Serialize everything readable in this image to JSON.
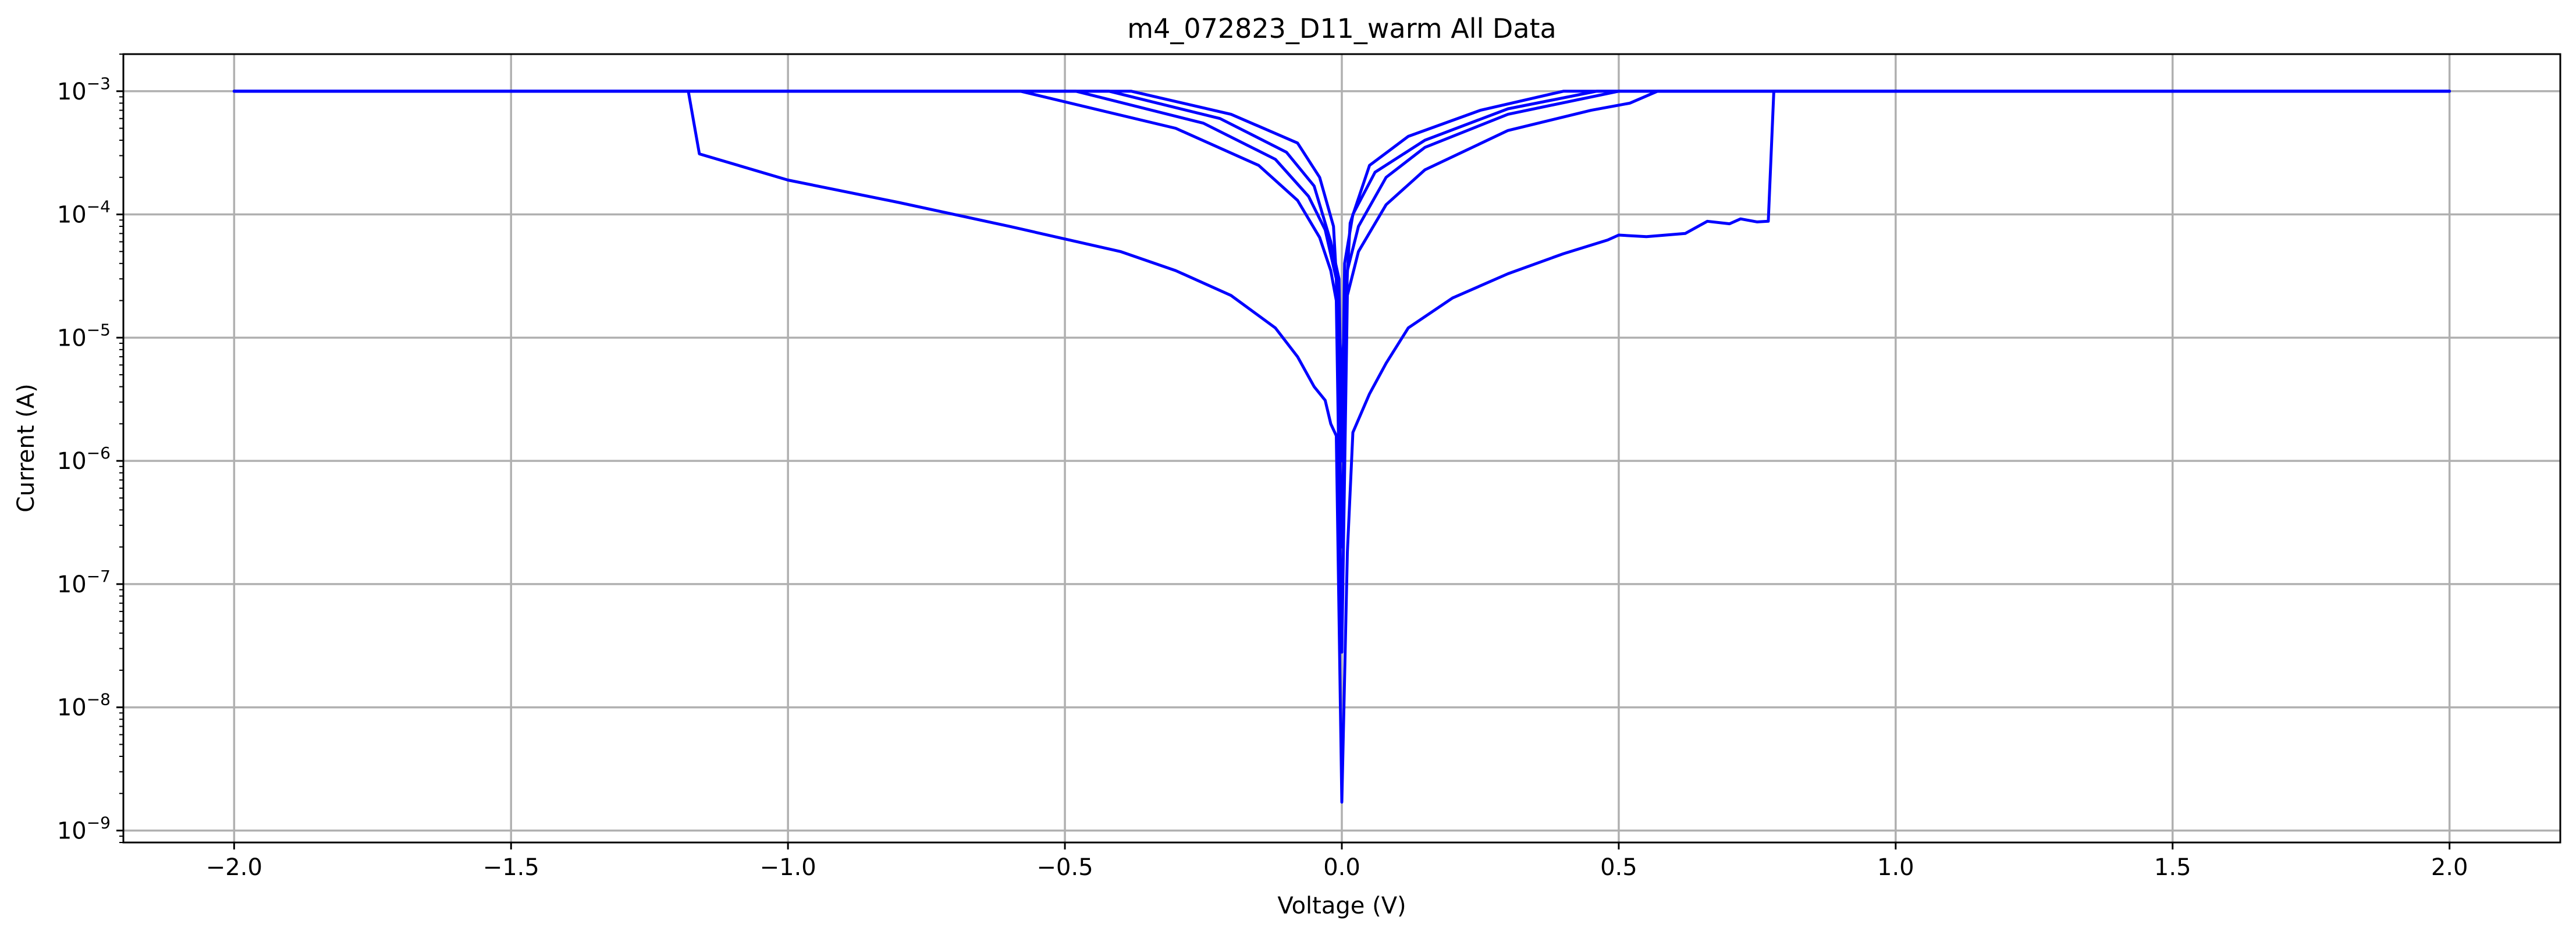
{
  "chart_data": {
    "type": "line",
    "title": "m4_072823_D11_warm All Data",
    "xlabel": "Voltage (V)",
    "ylabel": "Current (A)",
    "yscale": "log",
    "xlim": [
      -2.2,
      2.2
    ],
    "ylim": [
      8e-10,
      0.002
    ],
    "grid": true,
    "color": "#0000ff",
    "x_ticks": [
      {
        "value": -2.0,
        "label": "−2.0"
      },
      {
        "value": -1.5,
        "label": "−1.5"
      },
      {
        "value": -1.0,
        "label": "−1.0"
      },
      {
        "value": -0.5,
        "label": "−0.5"
      },
      {
        "value": 0.0,
        "label": "0.0"
      },
      {
        "value": 0.5,
        "label": "0.5"
      },
      {
        "value": 1.0,
        "label": "1.0"
      },
      {
        "value": 1.5,
        "label": "1.5"
      },
      {
        "value": 2.0,
        "label": "2.0"
      }
    ],
    "y_ticks": [
      {
        "value": 1e-09,
        "base": "10",
        "exp": "−9"
      },
      {
        "value": 1e-08,
        "base": "10",
        "exp": "−8"
      },
      {
        "value": 1e-07,
        "base": "10",
        "exp": "−7"
      },
      {
        "value": 1e-06,
        "base": "10",
        "exp": "−6"
      },
      {
        "value": 1e-05,
        "base": "10",
        "exp": "−5"
      },
      {
        "value": 0.0001,
        "base": "10",
        "exp": "−4"
      },
      {
        "value": 0.001,
        "base": "10",
        "exp": "−3"
      }
    ],
    "series": [
      {
        "points": [
          [
            -2.0,
            0.001
          ],
          [
            -1.18,
            0.001
          ],
          [
            -1.16,
            0.00031
          ],
          [
            -1.0,
            0.00019
          ],
          [
            -0.8,
            0.000125
          ],
          [
            -0.6,
            8e-05
          ],
          [
            -0.4,
            5e-05
          ],
          [
            -0.3,
            3.5e-05
          ],
          [
            -0.2,
            2.2e-05
          ],
          [
            -0.12,
            1.2e-05
          ],
          [
            -0.08,
            7e-06
          ],
          [
            -0.05,
            4e-06
          ],
          [
            -0.03,
            3.1e-06
          ],
          [
            -0.02,
            2e-06
          ],
          [
            -0.01,
            1.6e-06
          ],
          [
            0.0,
            1.7e-09
          ],
          [
            0.01,
            1.8e-07
          ],
          [
            0.02,
            1.7e-06
          ],
          [
            0.05,
            3.5e-06
          ],
          [
            0.08,
            6.2e-06
          ],
          [
            0.12,
            1.2e-05
          ],
          [
            0.2,
            2.1e-05
          ],
          [
            0.3,
            3.3e-05
          ],
          [
            0.4,
            4.8e-05
          ],
          [
            0.48,
            6.2e-05
          ],
          [
            0.5,
            6.8e-05
          ],
          [
            0.55,
            6.6e-05
          ],
          [
            0.62,
            7e-05
          ],
          [
            0.66,
            8.8e-05
          ],
          [
            0.7,
            8.4e-05
          ],
          [
            0.72,
            9.2e-05
          ],
          [
            0.75,
            8.7e-05
          ],
          [
            0.77,
            8.8e-05
          ],
          [
            0.78,
            0.001
          ],
          [
            2.0,
            0.001
          ]
        ]
      },
      {
        "points": [
          [
            -2.0,
            0.001
          ],
          [
            -0.58,
            0.001
          ],
          [
            -0.3,
            0.0005
          ],
          [
            -0.15,
            0.00025
          ],
          [
            -0.08,
            0.00013
          ],
          [
            -0.04,
            6.5e-05
          ],
          [
            -0.02,
            3.5e-05
          ],
          [
            -0.01,
            2e-05
          ],
          [
            0.0,
            2.8e-08
          ],
          [
            0.01,
            2.2e-05
          ],
          [
            0.03,
            5e-05
          ],
          [
            0.08,
            0.00012
          ],
          [
            0.15,
            0.00023
          ],
          [
            0.3,
            0.00048
          ],
          [
            0.45,
            0.0007
          ],
          [
            0.52,
            0.0008
          ],
          [
            0.57,
            0.001
          ],
          [
            2.0,
            0.001
          ]
        ]
      },
      {
        "points": [
          [
            -2.0,
            0.001
          ],
          [
            -0.48,
            0.001
          ],
          [
            -0.25,
            0.00055
          ],
          [
            -0.12,
            0.00028
          ],
          [
            -0.06,
            0.00014
          ],
          [
            -0.03,
            7.5e-05
          ],
          [
            -0.01,
            3e-05
          ],
          [
            0.0,
            2e-07
          ],
          [
            0.01,
            3.5e-05
          ],
          [
            0.03,
            8e-05
          ],
          [
            0.08,
            0.0002
          ],
          [
            0.15,
            0.00035
          ],
          [
            0.3,
            0.00065
          ],
          [
            0.5,
            0.001
          ],
          [
            2.0,
            0.001
          ]
        ]
      },
      {
        "points": [
          [
            -2.0,
            0.001
          ],
          [
            -0.42,
            0.001
          ],
          [
            -0.22,
            0.0006
          ],
          [
            -0.1,
            0.00032
          ],
          [
            -0.05,
            0.00017
          ],
          [
            -0.02,
            6e-05
          ],
          [
            -0.005,
            3e-05
          ],
          [
            0.0,
            1e-06
          ],
          [
            0.005,
            4e-05
          ],
          [
            0.02,
            0.0001
          ],
          [
            0.06,
            0.00022
          ],
          [
            0.15,
            0.0004
          ],
          [
            0.3,
            0.00072
          ],
          [
            0.46,
            0.001
          ],
          [
            2.0,
            0.001
          ]
        ]
      },
      {
        "points": [
          [
            -2.0,
            0.001
          ],
          [
            -0.38,
            0.001
          ],
          [
            -0.2,
            0.00065
          ],
          [
            -0.08,
            0.00038
          ],
          [
            -0.04,
            0.0002
          ],
          [
            -0.015,
            8e-05
          ],
          [
            0.0,
            5e-06
          ],
          [
            0.015,
            8.5e-05
          ],
          [
            0.05,
            0.00025
          ],
          [
            0.12,
            0.00043
          ],
          [
            0.25,
            0.0007
          ],
          [
            0.4,
            0.001
          ],
          [
            2.0,
            0.001
          ]
        ]
      }
    ]
  }
}
